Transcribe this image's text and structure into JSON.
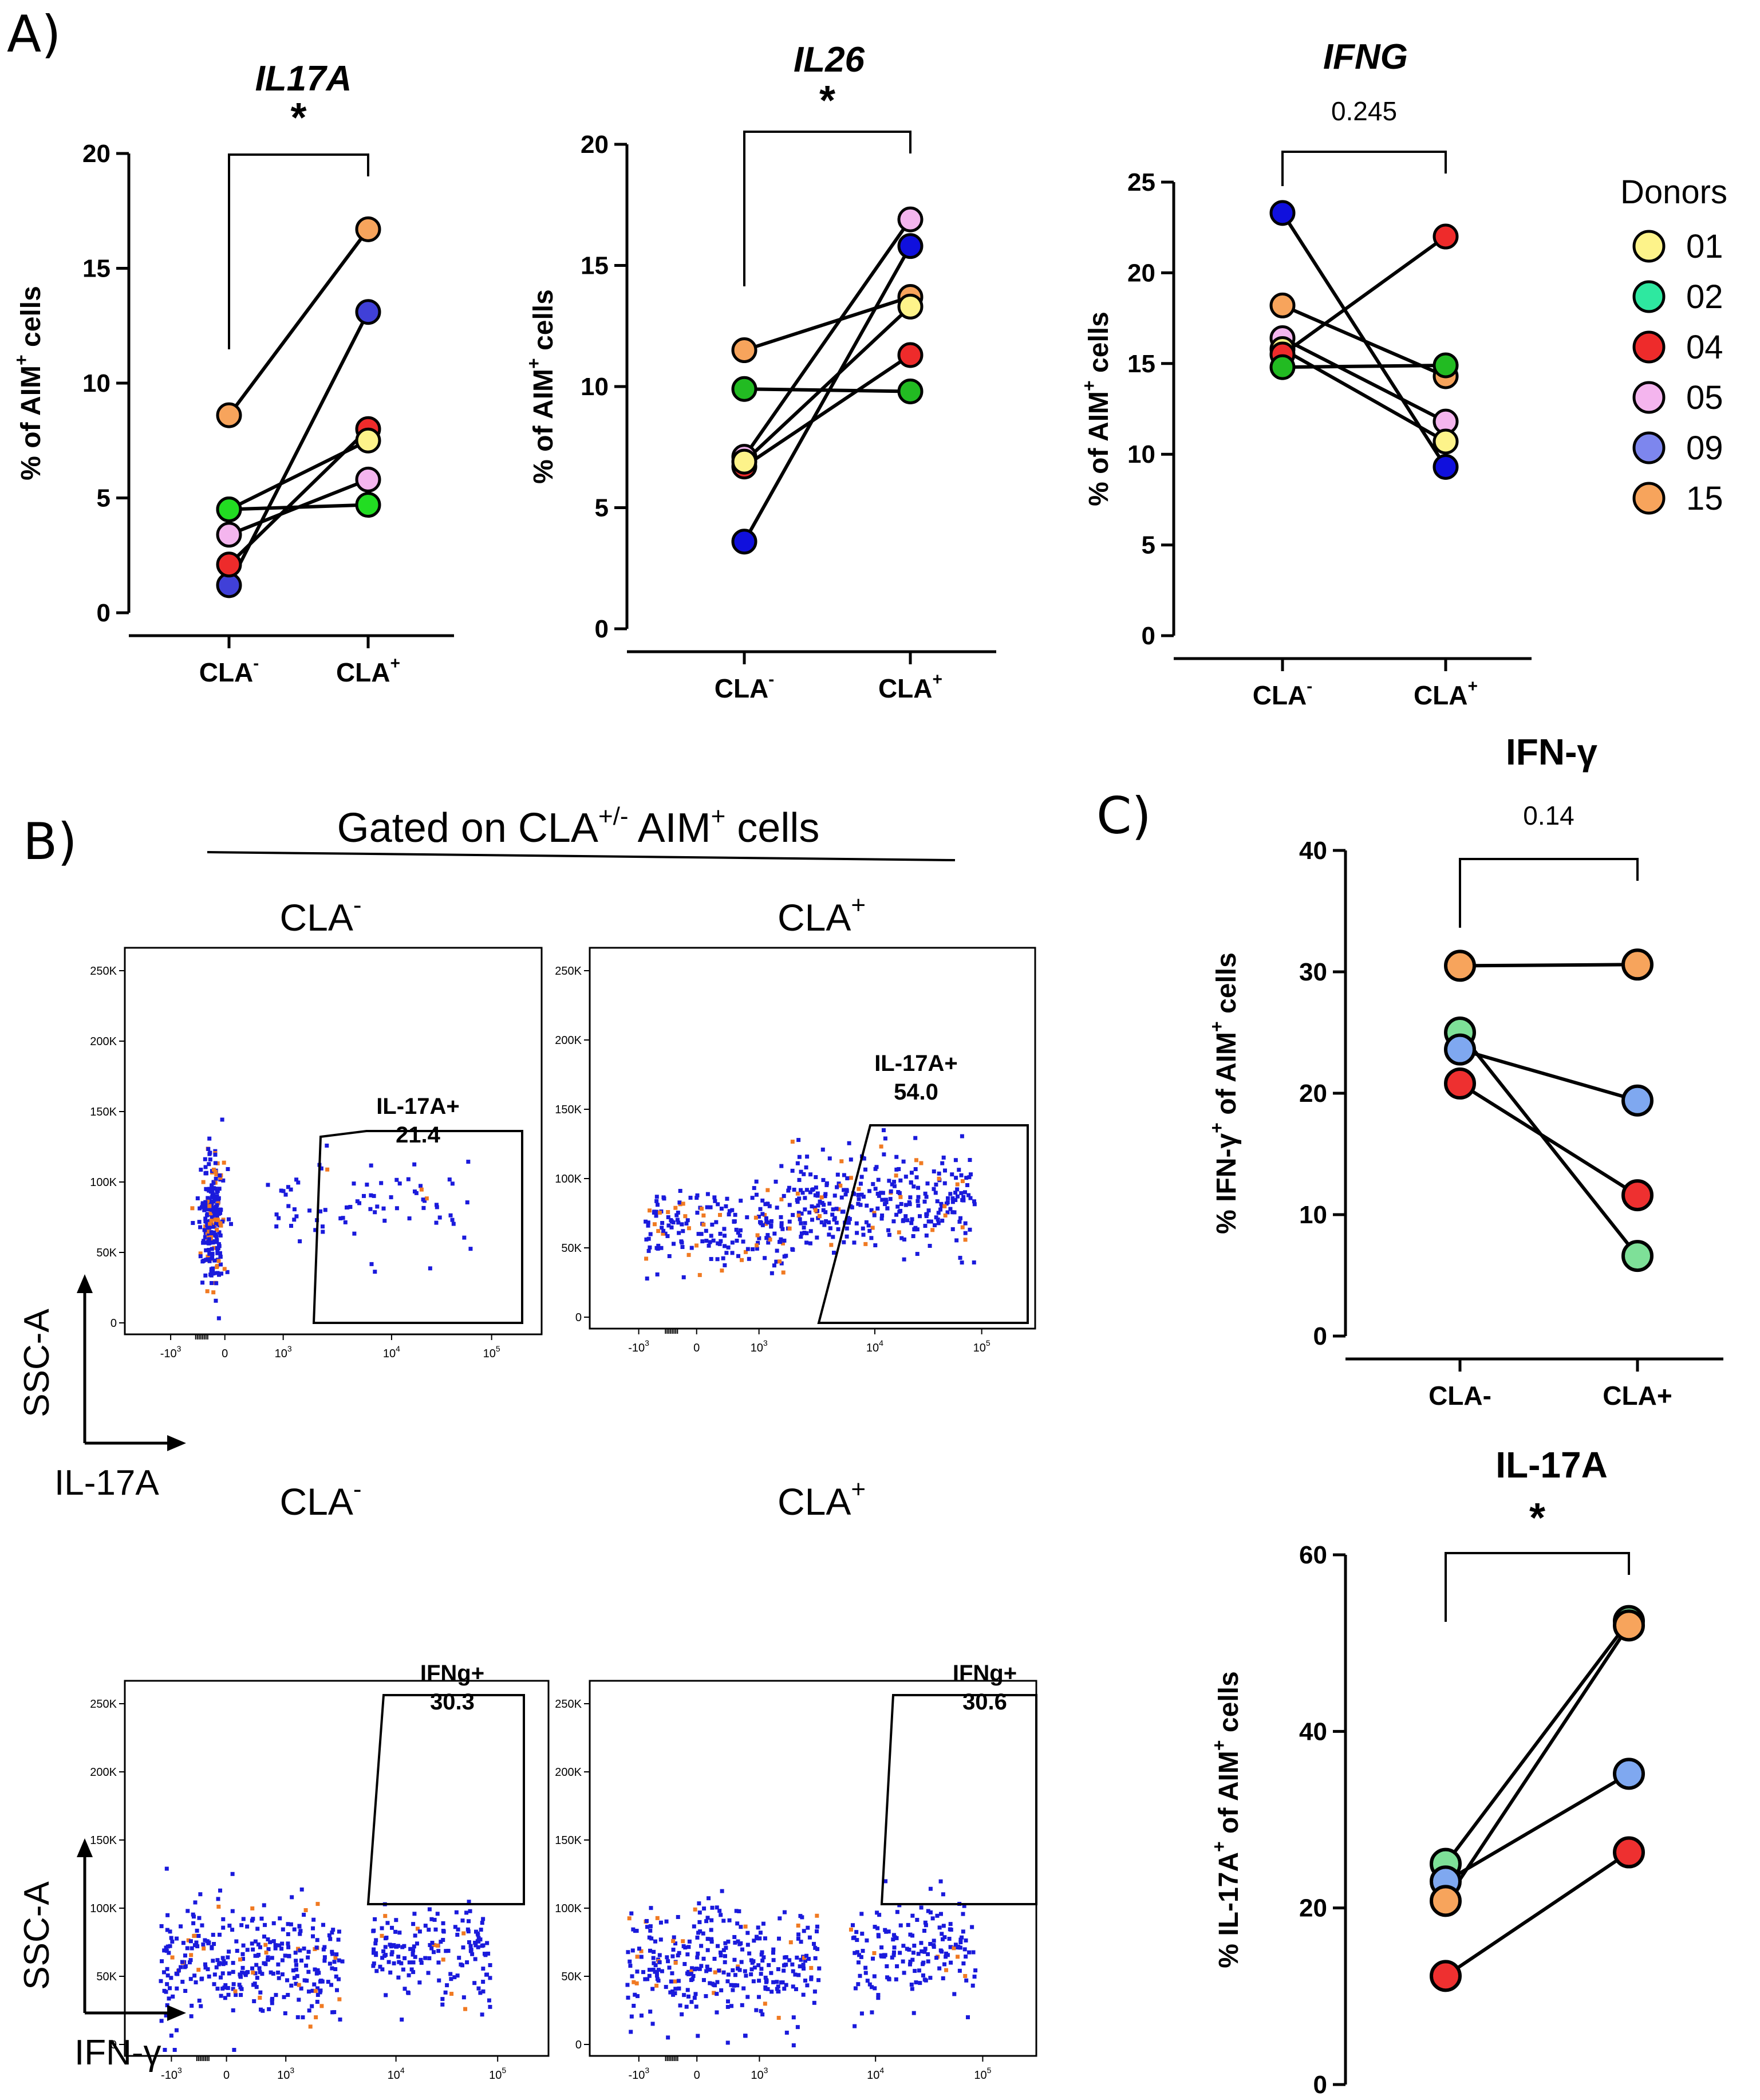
{
  "figure": {
    "panel_labels": [
      "A)",
      "B)",
      "C)"
    ]
  },
  "legend": {
    "title": "Donors",
    "entries": [
      {
        "id": "01",
        "color": "#fdf38a"
      },
      {
        "id": "02",
        "color": "#2ee8a0"
      },
      {
        "id": "04",
        "color": "#ee2b2b"
      },
      {
        "id": "05",
        "color": "#f4b5ee"
      },
      {
        "id": "09",
        "color": "#7d86ee"
      },
      {
        "id": "15",
        "color": "#f7a45c"
      }
    ]
  },
  "chart_data": [
    {
      "id": "il17a",
      "type": "scatter",
      "title": "IL17A",
      "ylabel_prefix": "% of AIM",
      "ylabel_sup": "+",
      "ylabel_suffix": " cells",
      "ylim": [
        0,
        20
      ],
      "yticks": [
        "0",
        "5",
        "10",
        "15",
        "20"
      ],
      "categories": [
        {
          "base": "CLA",
          "sup": "-"
        },
        {
          "base": "CLA",
          "sup": "+"
        }
      ],
      "annotation": "*",
      "series": [
        {
          "name": "15",
          "color": "#f7a45c",
          "values": [
            8.6,
            16.7
          ]
        },
        {
          "name": "09",
          "color": "#4040d8",
          "values": [
            1.2,
            13.1
          ]
        },
        {
          "name": "04",
          "color": "#ee2b2b",
          "values": [
            2.1,
            8.0
          ]
        },
        {
          "name": "01",
          "color": "#fdf38a",
          "values": [
            4.5,
            7.5
          ]
        },
        {
          "name": "05",
          "color": "#f4b5ee",
          "values": [
            3.4,
            5.8
          ]
        },
        {
          "name": "02",
          "color": "#22dd22",
          "values": [
            4.5,
            4.7
          ]
        }
      ]
    },
    {
      "id": "il26",
      "type": "scatter",
      "title": "IL26",
      "ylabel_prefix": "% of AIM",
      "ylabel_sup": "+",
      "ylabel_suffix": " cells",
      "ylim": [
        0,
        20
      ],
      "yticks": [
        "0",
        "5",
        "10",
        "15",
        "20"
      ],
      "categories": [
        {
          "base": "CLA",
          "sup": "-"
        },
        {
          "base": "CLA",
          "sup": "+"
        }
      ],
      "annotation": "*",
      "series": [
        {
          "name": "15",
          "color": "#f7a45c",
          "values": [
            11.5,
            13.7
          ]
        },
        {
          "name": "02",
          "color": "#22bb22",
          "values": [
            9.9,
            9.8
          ]
        },
        {
          "name": "05",
          "color": "#f4b5ee",
          "values": [
            7.1,
            16.9
          ]
        },
        {
          "name": "04",
          "color": "#ee2b2b",
          "values": [
            6.7,
            11.3
          ]
        },
        {
          "name": "01",
          "color": "#fdf38a",
          "values": [
            6.9,
            13.3
          ]
        },
        {
          "name": "09",
          "color": "#1010dd",
          "values": [
            3.6,
            15.8
          ]
        }
      ]
    },
    {
      "id": "ifng",
      "type": "scatter",
      "title": "IFNG",
      "ylabel_prefix": "% of AIM",
      "ylabel_sup": "+",
      "ylabel_suffix": " cells",
      "ylim": [
        0,
        25
      ],
      "yticks": [
        "0",
        "5",
        "10",
        "15",
        "20",
        "25"
      ],
      "categories": [
        {
          "base": "CLA",
          "sup": "-"
        },
        {
          "base": "CLA",
          "sup": "+"
        }
      ],
      "annotation": "0.245",
      "series": [
        {
          "name": "09",
          "color": "#1010dd",
          "values": [
            23.3,
            9.3
          ]
        },
        {
          "name": "15",
          "color": "#f7a45c",
          "values": [
            18.2,
            14.3
          ]
        },
        {
          "name": "05",
          "color": "#f4b5ee",
          "values": [
            16.4,
            11.8
          ]
        },
        {
          "name": "01",
          "color": "#fdf38a",
          "values": [
            15.8,
            10.7
          ]
        },
        {
          "name": "04",
          "color": "#ee2b2b",
          "values": [
            15.5,
            22.0
          ]
        },
        {
          "name": "02",
          "color": "#22bb22",
          "values": [
            14.8,
            14.9
          ]
        }
      ]
    },
    {
      "id": "ifngamma",
      "type": "scatter",
      "title": "IFN-γ",
      "ylabel_prefix": "% IFN-γ",
      "ylabel_sup": "+",
      "ylabel_suffix": " of AIM",
      "ylabel_sup2": "+",
      "ylabel_suffix2": " cells",
      "ylim": [
        0,
        40
      ],
      "yticks": [
        "0",
        "10",
        "20",
        "30",
        "40"
      ],
      "categories": [
        {
          "base": "CLA-",
          "sup": ""
        },
        {
          "base": "CLA+",
          "sup": ""
        }
      ],
      "annotation": "0.14",
      "series": [
        {
          "name": "15",
          "color": "#f7a45c",
          "values": [
            30.5,
            30.6
          ]
        },
        {
          "name": "02",
          "color": "#7ee098",
          "values": [
            25.0,
            6.6
          ]
        },
        {
          "name": "09",
          "color": "#7fa8f0",
          "values": [
            23.6,
            19.4
          ]
        },
        {
          "name": "04",
          "color": "#ee3030",
          "values": [
            20.8,
            11.6
          ]
        }
      ]
    },
    {
      "id": "il17a_c",
      "type": "scatter",
      "title": "IL-17A",
      "ylabel_prefix": "% IL-17A",
      "ylabel_sup": "+",
      "ylabel_suffix": " of AIM",
      "ylabel_sup2": "+",
      "ylabel_suffix2": " cells",
      "ylim": [
        0,
        60
      ],
      "yticks": [
        "0",
        "20",
        "40",
        "60"
      ],
      "categories": [
        {
          "base": "CLA-",
          "sup": ""
        },
        {
          "base": "CLA+",
          "sup": ""
        }
      ],
      "annotation": "*",
      "series": [
        {
          "name": "02",
          "color": "#7ee098",
          "values": [
            25.0,
            52.5
          ]
        },
        {
          "name": "09",
          "color": "#7fa8f0",
          "values": [
            23.0,
            35.2
          ]
        },
        {
          "name": "15",
          "color": "#f7a45c",
          "values": [
            20.8,
            52.0
          ]
        },
        {
          "name": "04",
          "color": "#ee3030",
          "values": [
            12.3,
            26.3
          ]
        }
      ]
    }
  ],
  "panelB": {
    "header_prefix": "Gated on CLA",
    "header_sup": "+/-",
    "header_mid": " AIM",
    "header_sup2": "+",
    "header_suffix": " cells",
    "yaxis_label": "SSC-A",
    "row1_xaxis_label": "IL-17A",
    "row2_xaxis_label": "IFN-γ",
    "yticks": [
      "250K",
      "200K",
      "150K",
      "100K",
      "50K",
      "0"
    ],
    "xticks": [
      {
        "base": "-10",
        "exp": "3"
      },
      {
        "base": "0",
        "exp": ""
      },
      {
        "base": "10",
        "exp": "3"
      },
      {
        "base": "10",
        "exp": "4"
      },
      {
        "base": "10",
        "exp": "5"
      }
    ],
    "plots": [
      {
        "id": "b1",
        "condition_base": "CLA",
        "condition_sup": "-",
        "gate_name": "IL-17A+",
        "gate_value": "21.4"
      },
      {
        "id": "b2",
        "condition_base": "CLA",
        "condition_sup": "+",
        "gate_name": "IL-17A+",
        "gate_value": "54.0"
      },
      {
        "id": "b3",
        "condition_base": "CLA",
        "condition_sup": "-",
        "gate_name": "IFNg+",
        "gate_value": "30.3"
      },
      {
        "id": "b4",
        "condition_base": "CLA",
        "condition_sup": "+",
        "gate_name": "IFNg+",
        "gate_value": "30.6"
      }
    ],
    "dot_colors": {
      "main": "#1a1adc",
      "highlight": "#f07a22"
    }
  }
}
